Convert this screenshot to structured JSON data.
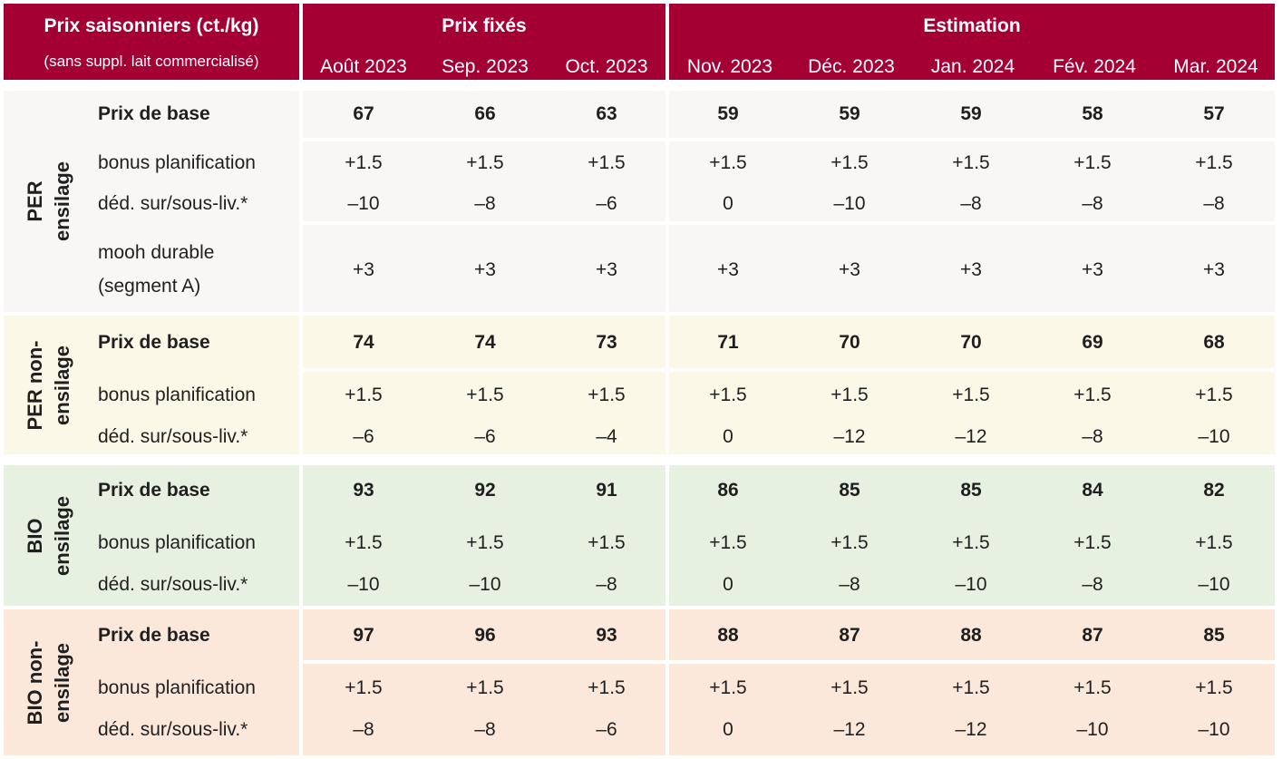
{
  "header": {
    "title": "Prix saisonniers (ct./kg)",
    "subtitle": "(sans suppl. lait commercialisé)",
    "fixed_label": "Prix fixés",
    "estimate_label": "Estimation",
    "months": [
      "Août 2023",
      "Sep. 2023",
      "Oct. 2023",
      "Nov. 2023",
      "Déc. 2023",
      "Jan. 2024",
      "Fév. 2024",
      "Mar. 2024"
    ]
  },
  "colors": {
    "header_bg": "#a50034",
    "per_ensilage_bg": "#f9f7f6",
    "per_non_ensilage_bg": "#fcf8e7",
    "bio_ensilage_bg": "#e7f1e2",
    "bio_non_ensilage_bg": "#fbe8db"
  },
  "groups": [
    {
      "line1": "PER",
      "line2": "ensilage",
      "rows": [
        {
          "label": "Prix de base",
          "values": [
            "67",
            "66",
            "63",
            "59",
            "59",
            "59",
            "58",
            "57"
          ]
        },
        {
          "label": "bonus planification",
          "values": [
            "+1.5",
            "+1.5",
            "+1.5",
            "+1.5",
            "+1.5",
            "+1.5",
            "+1.5",
            "+1.5"
          ]
        },
        {
          "label": "déd. sur/sous-liv.*",
          "values": [
            "–10",
            "–8",
            "–6",
            "0",
            "–10",
            "–8",
            "–8",
            "–8"
          ]
        },
        {
          "label_line1": "mooh durable",
          "label_line2": "(segment A)",
          "values": [
            "+3",
            "+3",
            "+3",
            "+3",
            "+3",
            "+3",
            "+3",
            "+3"
          ]
        }
      ]
    },
    {
      "line1": "PER non-",
      "line2": "ensilage",
      "rows": [
        {
          "label": "Prix de base",
          "values": [
            "74",
            "74",
            "73",
            "71",
            "70",
            "70",
            "69",
            "68"
          ]
        },
        {
          "label": "bonus planification",
          "values": [
            "+1.5",
            "+1.5",
            "+1.5",
            "+1.5",
            "+1.5",
            "+1.5",
            "+1.5",
            "+1.5"
          ]
        },
        {
          "label": "déd. sur/sous-liv.*",
          "values": [
            "–6",
            "–6",
            "–4",
            "0",
            "–12",
            "–12",
            "–8",
            "–10"
          ]
        }
      ]
    },
    {
      "line1": "BIO",
      "line2": "ensilage",
      "rows": [
        {
          "label": "Prix de base",
          "values": [
            "93",
            "92",
            "91",
            "86",
            "85",
            "85",
            "84",
            "82"
          ]
        },
        {
          "label": "bonus planification",
          "values": [
            "+1.5",
            "+1.5",
            "+1.5",
            "+1.5",
            "+1.5",
            "+1.5",
            "+1.5",
            "+1.5"
          ]
        },
        {
          "label": "déd. sur/sous-liv.*",
          "values": [
            "–10",
            "–10",
            "–8",
            "0",
            "–8",
            "–10",
            "–8",
            "–10"
          ]
        }
      ]
    },
    {
      "line1": "BIO non-",
      "line2": "ensilage",
      "rows": [
        {
          "label": "Prix de base",
          "values": [
            "97",
            "96",
            "93",
            "88",
            "87",
            "88",
            "87",
            "85"
          ]
        },
        {
          "label": "bonus planification",
          "values": [
            "+1.5",
            "+1.5",
            "+1.5",
            "+1.5",
            "+1.5",
            "+1.5",
            "+1.5",
            "+1.5"
          ]
        },
        {
          "label": "déd. sur/sous-liv.*",
          "values": [
            "–8",
            "–8",
            "–6",
            "0",
            "–12",
            "–12",
            "–10",
            "–10"
          ]
        }
      ]
    }
  ]
}
